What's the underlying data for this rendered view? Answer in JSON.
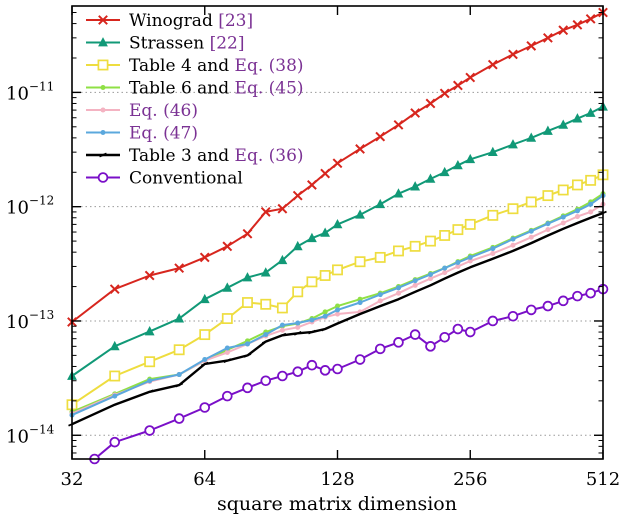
{
  "chart_data": {
    "type": "line",
    "xlabel": "square matrix dimension",
    "ylabel": "",
    "x_scale": "log2",
    "y_scale": "log10",
    "xlim": [
      32,
      512
    ],
    "ylim": [
      6.2e-15,
      5.7e-11
    ],
    "x_ticks": [
      32,
      64,
      128,
      256,
      512
    ],
    "y_ticks": [
      1e-14,
      1e-13,
      1e-12,
      1e-11
    ],
    "y_tick_labels": [
      {
        "base": "10",
        "exp": "−14"
      },
      {
        "base": "10",
        "exp": "−13"
      },
      {
        "base": "10",
        "exp": "−12"
      },
      {
        "base": "10",
        "exp": "−11"
      }
    ],
    "grid": "horizontal dotted at decades",
    "legend_position": "top-left",
    "series": [
      {
        "id": "winograd",
        "legend": [
          "Winograd ",
          "[23]"
        ],
        "color": "#d7261e",
        "marker": "x",
        "x": [
          32,
          40,
          48,
          56,
          64,
          72,
          80,
          88,
          96,
          104,
          112,
          120,
          128,
          144,
          160,
          176,
          192,
          208,
          224,
          240,
          256,
          288,
          320,
          352,
          384,
          416,
          448,
          480,
          512
        ],
        "y": [
          9.8e-14,
          1.9e-13,
          2.5e-13,
          2.9e-13,
          3.6e-13,
          4.5e-13,
          5.8e-13,
          9e-13,
          9.6e-13,
          1.25e-12,
          1.55e-12,
          1.95e-12,
          2.4e-12,
          3.2e-12,
          4.1e-12,
          5.2e-12,
          6.6e-12,
          8e-12,
          9.8e-12,
          1.15e-11,
          1.35e-11,
          1.75e-11,
          2.15e-11,
          2.55e-11,
          3e-11,
          3.5e-11,
          3.9e-11,
          4.4e-11,
          5e-11
        ]
      },
      {
        "id": "strassen",
        "legend": [
          "Strassen ",
          "[22]"
        ],
        "color": "#119977",
        "marker": "triangle",
        "x": [
          32,
          40,
          48,
          56,
          64,
          72,
          80,
          88,
          96,
          104,
          112,
          120,
          128,
          144,
          160,
          176,
          192,
          208,
          224,
          240,
          256,
          288,
          320,
          352,
          384,
          416,
          448,
          480,
          512
        ],
        "y": [
          3.3e-14,
          6e-14,
          8.1e-14,
          1.05e-13,
          1.55e-13,
          1.95e-13,
          2.4e-13,
          2.65e-13,
          3.4e-13,
          4.5e-13,
          5.3e-13,
          5.9e-13,
          7e-13,
          8.5e-13,
          1.05e-12,
          1.3e-12,
          1.5e-12,
          1.75e-12,
          2e-12,
          2.3e-12,
          2.6e-12,
          3e-12,
          3.5e-12,
          4e-12,
          4.6e-12,
          5.2e-12,
          5.9e-12,
          6.6e-12,
          7.5e-12
        ]
      },
      {
        "id": "table4",
        "legend": [
          "Table 4",
          " and ",
          "Eq. (38)"
        ],
        "color": "#eedd3f",
        "marker": "square",
        "x": [
          32,
          40,
          48,
          56,
          64,
          72,
          80,
          88,
          96,
          104,
          112,
          120,
          128,
          144,
          160,
          176,
          192,
          208,
          224,
          240,
          256,
          288,
          320,
          352,
          384,
          416,
          448,
          480,
          512
        ],
        "y": [
          1.85e-14,
          3.3e-14,
          4.4e-14,
          5.6e-14,
          7.6e-14,
          1.05e-13,
          1.45e-13,
          1.4e-13,
          1.3e-13,
          1.8e-13,
          2.2e-13,
          2.5e-13,
          2.8e-13,
          3.3e-13,
          3.6e-13,
          4.1e-13,
          4.5e-13,
          5e-13,
          5.6e-13,
          6.3e-13,
          7e-13,
          8.4e-13,
          9.6e-13,
          1.1e-12,
          1.25e-12,
          1.4e-12,
          1.55e-12,
          1.7e-12,
          1.9e-12
        ]
      },
      {
        "id": "table6",
        "legend": [
          "Table 6",
          " and ",
          "Eq. (45)"
        ],
        "color": "#8fe045",
        "marker": "dot",
        "x": [
          32,
          40,
          48,
          56,
          64,
          72,
          80,
          88,
          96,
          104,
          112,
          120,
          128,
          144,
          160,
          176,
          192,
          208,
          224,
          240,
          256,
          288,
          320,
          352,
          384,
          416,
          448,
          480,
          512
        ],
        "y": [
          1.6e-14,
          2.3e-14,
          3.1e-14,
          3.4e-14,
          4.5e-14,
          5.6e-14,
          6.7e-14,
          8e-14,
          9e-14,
          9.5e-14,
          1.05e-13,
          1.2e-13,
          1.35e-13,
          1.55e-13,
          1.75e-13,
          2e-13,
          2.3e-13,
          2.6e-13,
          2.9e-13,
          3.3e-13,
          3.7e-13,
          4.4e-13,
          5.3e-13,
          6.2e-13,
          7.2e-13,
          8.3e-13,
          9.5e-13,
          1.1e-12,
          1.3e-12
        ]
      },
      {
        "id": "eq46",
        "legend": [
          "Eq. (46)"
        ],
        "color": "#f4b3c2",
        "marker": "dot",
        "x": [
          32,
          40,
          48,
          56,
          64,
          72,
          80,
          88,
          96,
          104,
          112,
          120,
          128,
          144,
          160,
          176,
          192,
          208,
          224,
          240,
          256,
          288,
          320,
          352,
          384,
          416,
          448,
          480,
          512
        ],
        "y": [
          1.55e-14,
          2.25e-14,
          2.95e-14,
          3.4e-14,
          4.5e-14,
          5.3e-14,
          6.3e-14,
          7.4e-14,
          8.3e-14,
          8.8e-14,
          9.8e-14,
          1.08e-13,
          1.15e-13,
          1.2e-13,
          1.5e-13,
          1.75e-13,
          2.05e-13,
          2.35e-13,
          2.65e-13,
          3e-13,
          3.35e-13,
          3.9e-13,
          4.6e-13,
          5.4e-13,
          6.3e-13,
          7.2e-13,
          8.2e-13,
          9e-13,
          1.05e-12
        ]
      },
      {
        "id": "eq47",
        "legend": [
          "Eq. (47)"
        ],
        "color": "#5ba8dd",
        "marker": "dot",
        "x": [
          32,
          40,
          48,
          56,
          64,
          72,
          80,
          88,
          96,
          104,
          112,
          120,
          128,
          144,
          160,
          176,
          192,
          208,
          224,
          240,
          256,
          288,
          320,
          352,
          384,
          416,
          448,
          480,
          512
        ],
        "y": [
          1.5e-14,
          2.2e-14,
          3e-14,
          3.4e-14,
          4.6e-14,
          5.8e-14,
          6.3e-14,
          7.6e-14,
          9.2e-14,
          9.6e-14,
          1.02e-13,
          1.1e-13,
          1.25e-13,
          1.45e-13,
          1.7e-13,
          1.95e-13,
          2.25e-13,
          2.55e-13,
          2.9e-13,
          3.25e-13,
          3.6e-13,
          4.3e-13,
          5.2e-13,
          6.1e-13,
          7.1e-13,
          8.1e-13,
          9.2e-13,
          1.05e-12,
          1.25e-12
        ]
      },
      {
        "id": "table3",
        "legend": [
          "Table 3",
          " and ",
          "Eq. (36)"
        ],
        "color": "#000000",
        "marker": "tick",
        "x": [
          32,
          40,
          48,
          56,
          64,
          72,
          80,
          88,
          96,
          104,
          112,
          120,
          128,
          144,
          160,
          176,
          192,
          208,
          224,
          240,
          256,
          288,
          320,
          352,
          384,
          416,
          448,
          480,
          512
        ],
        "y": [
          1.25e-14,
          1.85e-14,
          2.4e-14,
          2.75e-14,
          4.2e-14,
          4.5e-14,
          5e-14,
          6.6e-14,
          7.5e-14,
          7.8e-14,
          8e-14,
          8.5e-14,
          9.5e-14,
          1.15e-13,
          1.35e-13,
          1.55e-13,
          1.8e-13,
          2.05e-13,
          2.35e-13,
          2.65e-13,
          2.95e-13,
          3.5e-13,
          4.1e-13,
          4.8e-13,
          5.6e-13,
          6.4e-13,
          7.2e-13,
          8e-13,
          8.8e-13
        ]
      },
      {
        "id": "conventional",
        "legend": [
          "Conventional"
        ],
        "color": "#7a0fc8",
        "marker": "circle",
        "x": [
          36,
          40,
          48,
          56,
          64,
          72,
          80,
          88,
          96,
          104,
          112,
          120,
          128,
          144,
          160,
          176,
          192,
          208,
          224,
          240,
          256,
          288,
          320,
          352,
          384,
          416,
          448,
          480,
          512
        ],
        "y": [
          6.2e-15,
          8.7e-15,
          1.1e-14,
          1.4e-14,
          1.75e-14,
          2.2e-14,
          2.6e-14,
          3e-14,
          3.3e-14,
          3.6e-14,
          4.1e-14,
          3.7e-14,
          3.8e-14,
          4.6e-14,
          5.7e-14,
          6.5e-14,
          7.6e-14,
          6e-14,
          7.2e-14,
          8.5e-14,
          8e-14,
          1e-13,
          1.1e-13,
          1.25e-13,
          1.35e-13,
          1.5e-13,
          1.65e-13,
          1.75e-13,
          1.9e-13
        ]
      }
    ]
  }
}
